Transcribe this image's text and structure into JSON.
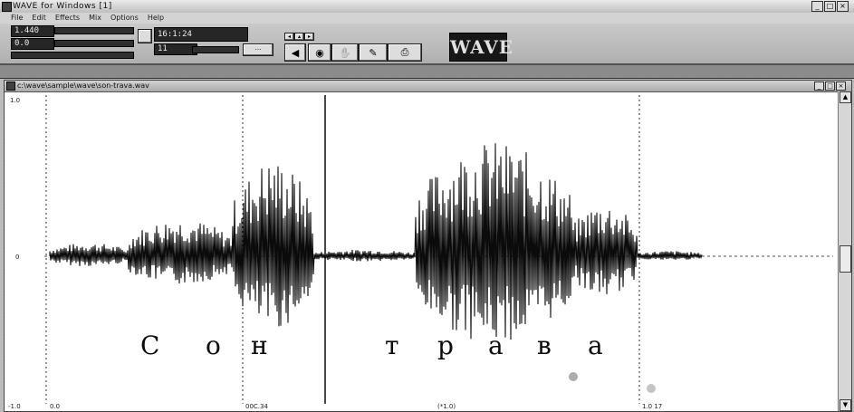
{
  "app": {
    "title": "WAVE for Windows [1]",
    "window_buttons": [
      "_",
      "□",
      "×"
    ]
  },
  "menu": [
    "File",
    "Edit",
    "Effects",
    "Mix",
    "Options",
    "Help"
  ],
  "toolbar": {
    "readout_top": "1.440",
    "readout_left": "0.0",
    "readout_mid": "16:1:24",
    "readout_small": "11",
    "logo_text": "WAVE"
  },
  "child_window": {
    "title": "c:\\wave\\sample\\wave\\son-trava.wav",
    "window_buttons": [
      "_",
      "□",
      "×"
    ]
  },
  "waveform": {
    "y_labels": {
      "top": "1.0",
      "middle": "0",
      "bottom": "-1.0"
    },
    "x_labels": [
      "0.0",
      "00C.34",
      "(*1.0)",
      "1.0 17"
    ],
    "words": [
      {
        "letters": [
          "С",
          "о",
          "н"
        ]
      },
      {
        "letters": [
          "т",
          "р",
          "а",
          "в",
          "а"
        ]
      }
    ],
    "segments": [
      {
        "start": 0.0,
        "end": 0.12,
        "peak": 0.1
      },
      {
        "start": 0.12,
        "end": 0.28,
        "peak": 0.28
      },
      {
        "start": 0.28,
        "end": 0.405,
        "peak": 0.72
      },
      {
        "start": 0.405,
        "end": 0.56,
        "peak": 0.05
      },
      {
        "start": 0.56,
        "end": 0.8,
        "peak": 0.85
      },
      {
        "start": 0.8,
        "end": 0.9,
        "peak": 0.4
      },
      {
        "start": 0.9,
        "end": 1.0,
        "peak": 0.04
      }
    ],
    "colors": {
      "wave": "#111111",
      "marker": "#222222",
      "baseline": "#555555"
    }
  }
}
